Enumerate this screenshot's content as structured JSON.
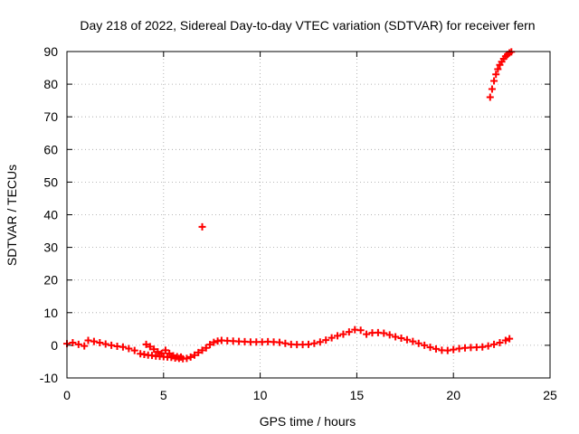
{
  "chart_data": {
    "type": "scatter",
    "title": "Day 218 of 2022, Sidereal Day-to-day VTEC variation (SDTVAR) for receiver fern",
    "xlabel": "GPS time / hours",
    "ylabel": "SDTVAR / TECUs",
    "xlim": [
      0,
      25
    ],
    "ylim": [
      -10,
      90
    ],
    "xticks": [
      0,
      5,
      10,
      15,
      20,
      25
    ],
    "yticks": [
      -10,
      0,
      10,
      20,
      30,
      40,
      50,
      60,
      70,
      80,
      90
    ],
    "grid": true,
    "marker": "plus",
    "series": [
      {
        "name": "SDTVAR",
        "color": "#ff0000",
        "points": [
          [
            0.0,
            0.5
          ],
          [
            0.3,
            0.8
          ],
          [
            0.6,
            0.3
          ],
          [
            0.9,
            -0.2
          ],
          [
            1.1,
            1.5
          ],
          [
            1.4,
            1.2
          ],
          [
            1.7,
            0.8
          ],
          [
            2.0,
            0.4
          ],
          [
            2.3,
            0.0
          ],
          [
            2.6,
            -0.3
          ],
          [
            2.9,
            -0.5
          ],
          [
            3.2,
            -1.0
          ],
          [
            3.5,
            -1.6
          ],
          [
            3.8,
            -2.6
          ],
          [
            4.0,
            -2.8
          ],
          [
            4.2,
            -3.0
          ],
          [
            4.4,
            -3.1
          ],
          [
            4.6,
            -3.3
          ],
          [
            4.8,
            -3.4
          ],
          [
            5.0,
            -3.5
          ],
          [
            5.2,
            -3.6
          ],
          [
            5.4,
            -3.7
          ],
          [
            5.6,
            -3.9
          ],
          [
            5.8,
            -4.0
          ],
          [
            6.0,
            -4.1
          ],
          [
            6.2,
            -4.0
          ],
          [
            6.4,
            -3.6
          ],
          [
            6.6,
            -3.0
          ],
          [
            6.8,
            -2.2
          ],
          [
            4.1,
            0.3
          ],
          [
            4.3,
            -0.4
          ],
          [
            4.5,
            -1.2
          ],
          [
            4.7,
            -2.0
          ],
          [
            4.9,
            -2.5
          ],
          [
            5.1,
            -1.5
          ],
          [
            5.3,
            -2.5
          ],
          [
            5.5,
            -3.2
          ],
          [
            5.7,
            -3.5
          ],
          [
            5.9,
            -3.6
          ],
          [
            7.0,
            36.3
          ],
          [
            7.0,
            -1.5
          ],
          [
            7.2,
            -0.8
          ],
          [
            7.4,
            0.2
          ],
          [
            7.6,
            0.9
          ],
          [
            7.8,
            1.3
          ],
          [
            8.0,
            1.5
          ],
          [
            8.3,
            1.4
          ],
          [
            8.6,
            1.3
          ],
          [
            8.9,
            1.2
          ],
          [
            9.2,
            1.1
          ],
          [
            9.5,
            1.0
          ],
          [
            9.8,
            1.0
          ],
          [
            10.1,
            1.0
          ],
          [
            10.4,
            1.1
          ],
          [
            10.7,
            1.0
          ],
          [
            11.0,
            0.9
          ],
          [
            11.3,
            0.6
          ],
          [
            11.6,
            0.3
          ],
          [
            11.9,
            0.2
          ],
          [
            12.2,
            0.2
          ],
          [
            12.5,
            0.3
          ],
          [
            12.8,
            0.6
          ],
          [
            13.1,
            1.0
          ],
          [
            13.4,
            1.6
          ],
          [
            13.7,
            2.3
          ],
          [
            14.0,
            2.9
          ],
          [
            14.3,
            3.4
          ],
          [
            14.6,
            4.1
          ],
          [
            14.9,
            4.8
          ],
          [
            15.2,
            4.6
          ],
          [
            15.5,
            3.4
          ],
          [
            15.8,
            3.8
          ],
          [
            16.1,
            3.9
          ],
          [
            16.4,
            3.7
          ],
          [
            16.7,
            3.2
          ],
          [
            17.0,
            2.6
          ],
          [
            17.3,
            2.2
          ],
          [
            17.6,
            1.7
          ],
          [
            17.9,
            1.2
          ],
          [
            18.2,
            0.6
          ],
          [
            18.5,
            0.0
          ],
          [
            18.8,
            -0.6
          ],
          [
            19.1,
            -1.1
          ],
          [
            19.4,
            -1.5
          ],
          [
            19.7,
            -1.6
          ],
          [
            20.0,
            -1.3
          ],
          [
            20.3,
            -1.0
          ],
          [
            20.6,
            -0.8
          ],
          [
            20.9,
            -0.7
          ],
          [
            21.2,
            -0.6
          ],
          [
            21.5,
            -0.5
          ],
          [
            21.8,
            -0.2
          ],
          [
            22.1,
            0.3
          ],
          [
            22.4,
            0.8
          ],
          [
            22.7,
            1.5
          ],
          [
            22.9,
            2.0
          ],
          [
            21.9,
            76.0
          ],
          [
            22.0,
            78.5
          ],
          [
            22.1,
            81.0
          ],
          [
            22.2,
            83.0
          ],
          [
            22.3,
            84.6
          ],
          [
            22.4,
            85.9
          ],
          [
            22.5,
            86.9
          ],
          [
            22.6,
            87.8
          ],
          [
            22.7,
            88.5
          ],
          [
            22.8,
            89.1
          ],
          [
            22.9,
            89.6
          ],
          [
            23.0,
            89.9
          ]
        ]
      }
    ]
  }
}
